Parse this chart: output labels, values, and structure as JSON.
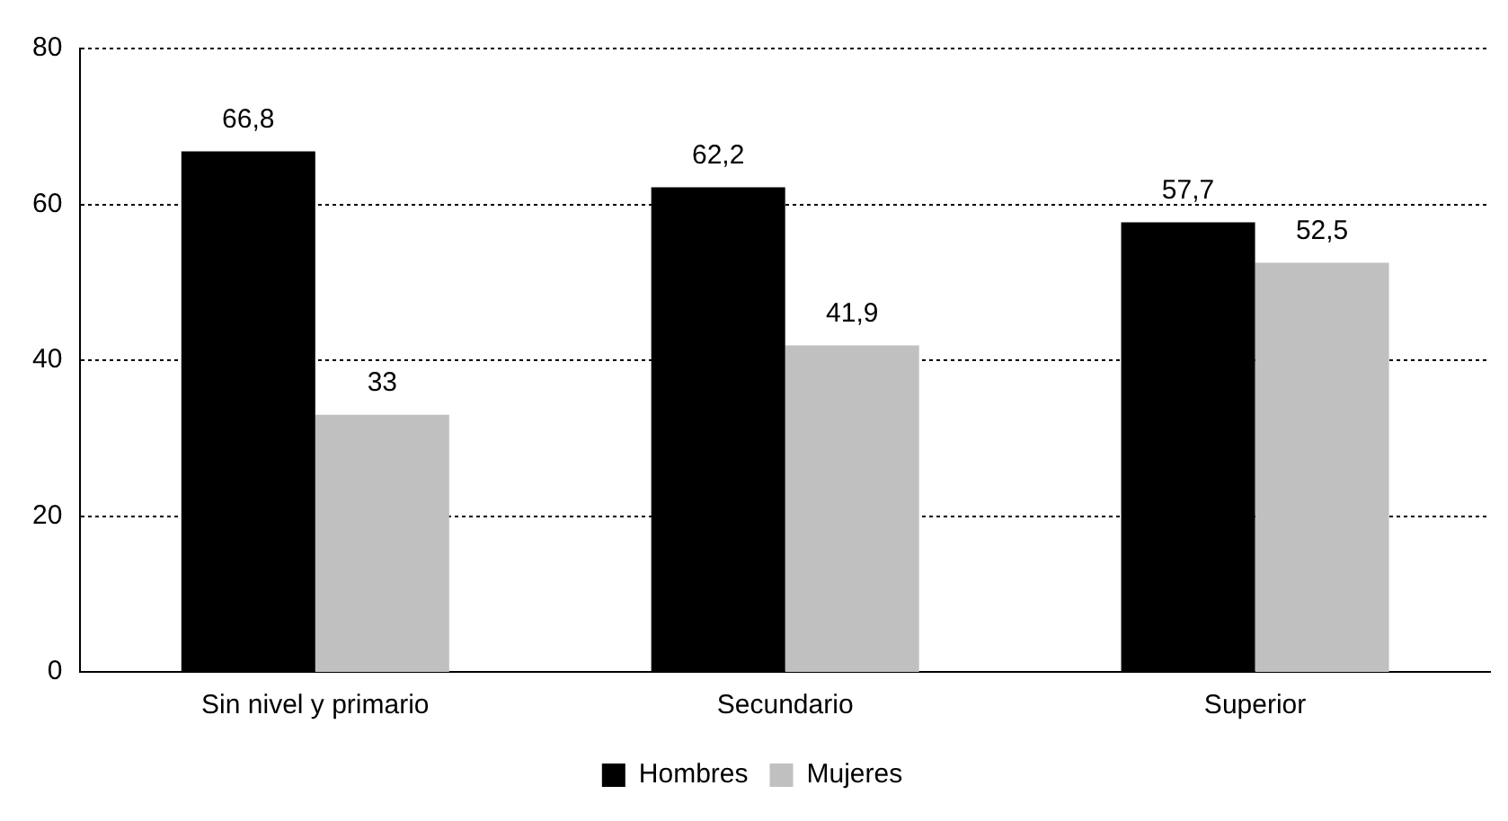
{
  "chart_data": {
    "type": "bar",
    "categories": [
      "Sin nivel y primario",
      "Secundario",
      "Superior"
    ],
    "series": [
      {
        "name": "Hombres",
        "color": "#000000",
        "values": [
          66.8,
          62.2,
          57.7
        ],
        "value_labels": [
          "66,8",
          "62,2",
          "57,7"
        ]
      },
      {
        "name": "Mujeres",
        "color": "#c0c0c0",
        "values": [
          33,
          41.9,
          52.5
        ],
        "value_labels": [
          "33",
          "41,9",
          "52,5"
        ]
      }
    ],
    "ylim": [
      0,
      80
    ],
    "yticks": [
      0,
      20,
      40,
      60,
      80
    ],
    "grid": "y",
    "legend": "bottom"
  }
}
